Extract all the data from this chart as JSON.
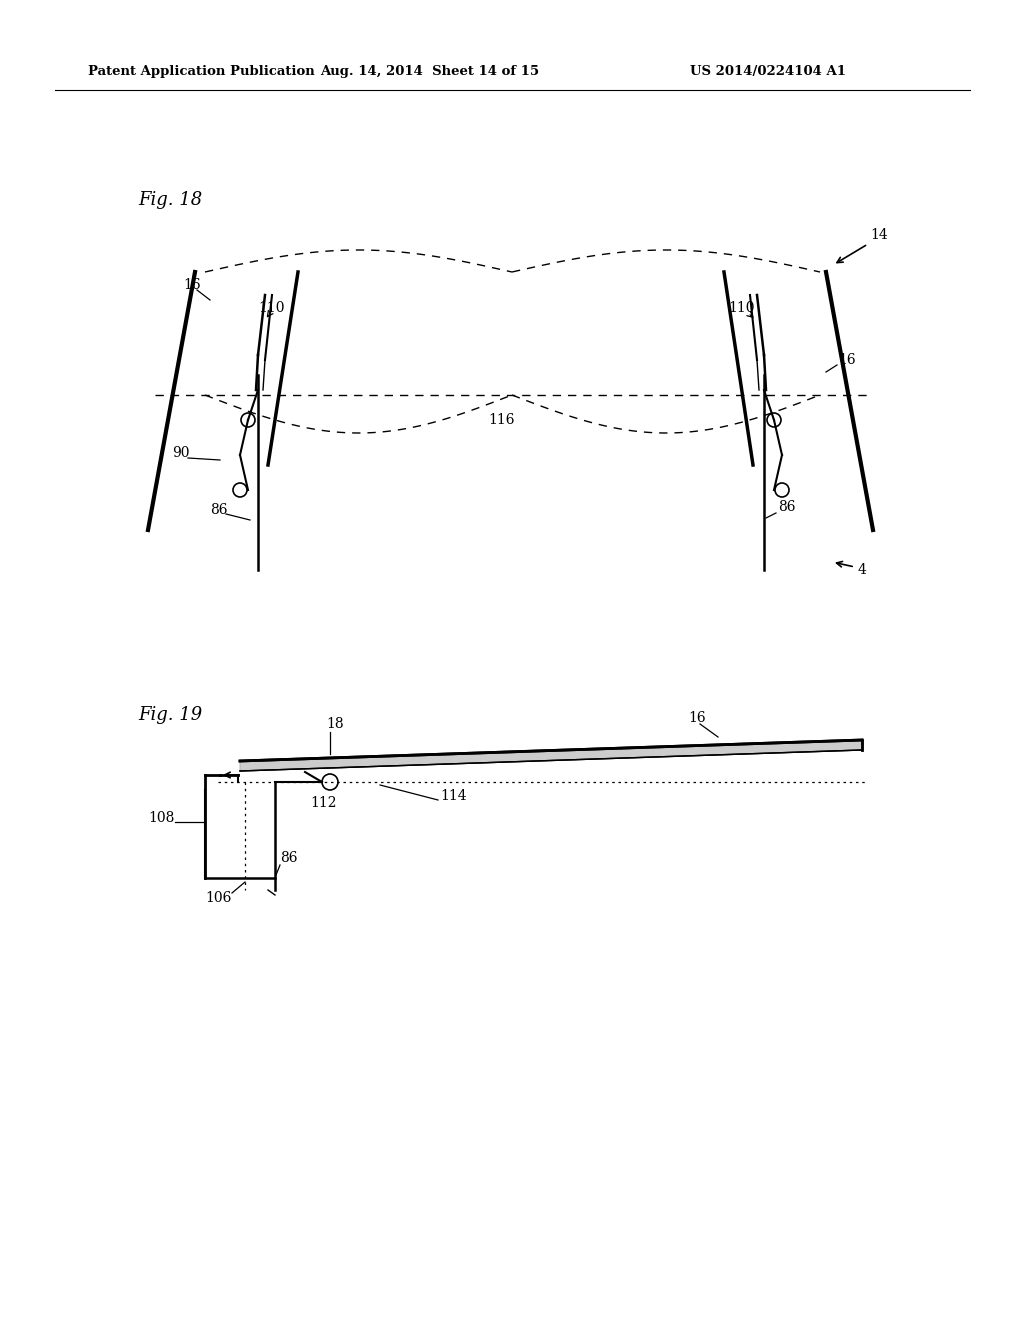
{
  "header_left": "Patent Application Publication",
  "header_mid": "Aug. 14, 2014  Sheet 14 of 15",
  "header_right": "US 2014/0224104 A1",
  "fig18_label": "Fig. 18",
  "fig19_label": "Fig. 19",
  "bg_color": "#ffffff",
  "line_color": "#000000",
  "dashed_color": "#000000"
}
